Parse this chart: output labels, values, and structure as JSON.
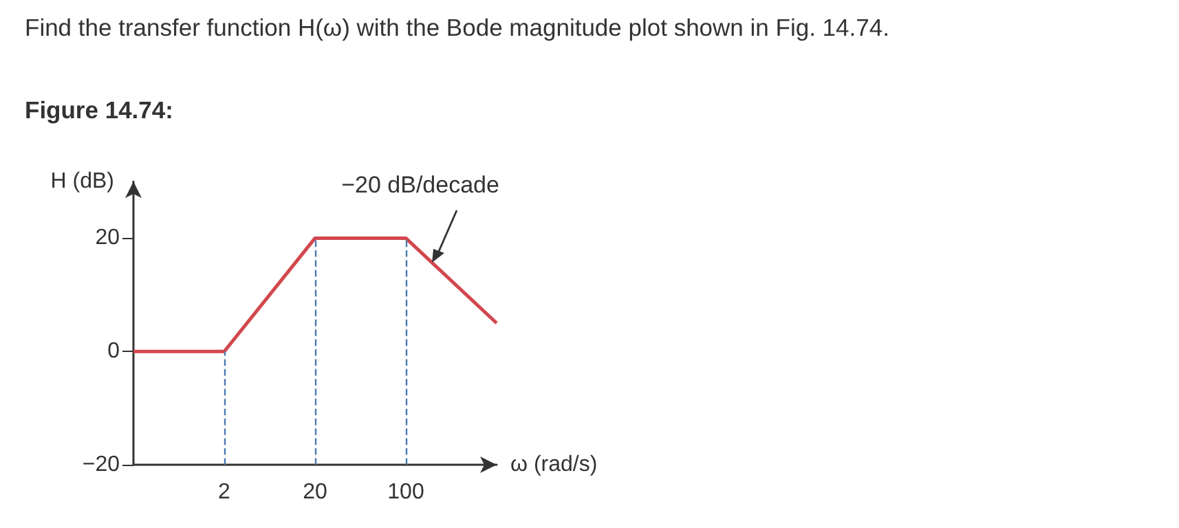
{
  "chart_data": {
    "type": "line",
    "title": "Find the transfer function H(ω) with the Bode magnitude plot shown in Fig. 14.74.",
    "subtitle": "Figure 14.74:",
    "xlabel": "ω (rad/s)",
    "ylabel": "H (dB)",
    "annotations": [
      "−20 dB/decade"
    ],
    "categories": [
      null,
      "2",
      "20",
      "100",
      null
    ],
    "series": [
      {
        "color": "#d2474e",
        "values": [
          0,
          0,
          20,
          20,
          5
        ]
      }
    ],
    "ylim": [
      -20,
      30
    ],
    "yticks": [
      -20,
      0,
      20
    ],
    "ref_lines": [
      {
        "axis": "x",
        "value": "2",
        "color": "#4a7ab0",
        "line_style": "dashed"
      },
      {
        "axis": "x",
        "value": "20",
        "color": "#4a7ab0",
        "line_style": "dashed"
      },
      {
        "axis": "x",
        "value": "100",
        "color": "#4a7ab0",
        "line_style": "dashed"
      }
    ],
    "grid": false,
    "marker": "none",
    "line_style": "solid"
  }
}
